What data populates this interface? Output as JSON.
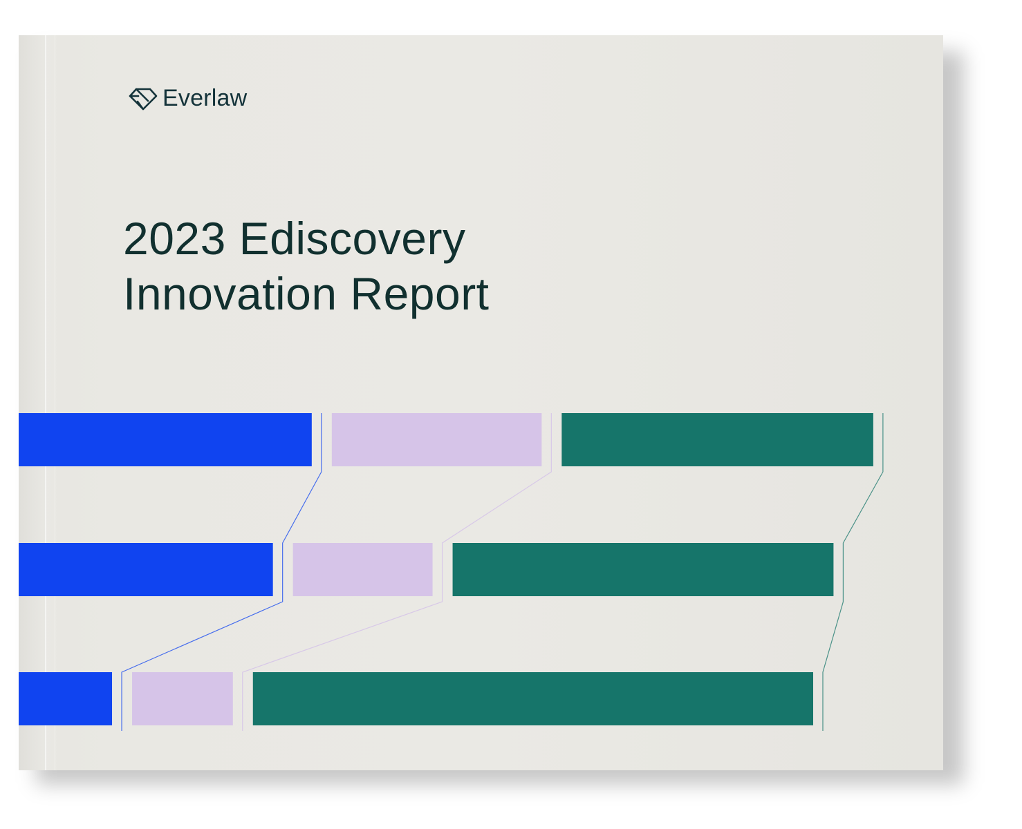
{
  "brand": {
    "name": "Everlaw",
    "logo_icon": "diamond-logo-icon"
  },
  "cover": {
    "title_line1": "2023 Ediscovery",
    "title_line2": "Innovation Report"
  },
  "colors": {
    "background": "#eae9e4",
    "text": "#11302f",
    "blue": "#1044f0",
    "lavender": "#d6c4e8",
    "green": "#16756a"
  },
  "decorative_bars": {
    "rows": [
      {
        "blue": 0.317,
        "lavender": 0.227,
        "green": 0.337
      },
      {
        "blue": 0.275,
        "lavender": 0.151,
        "green": 0.412
      },
      {
        "blue": 0.101,
        "lavender": 0.109,
        "green": 0.606
      }
    ]
  }
}
